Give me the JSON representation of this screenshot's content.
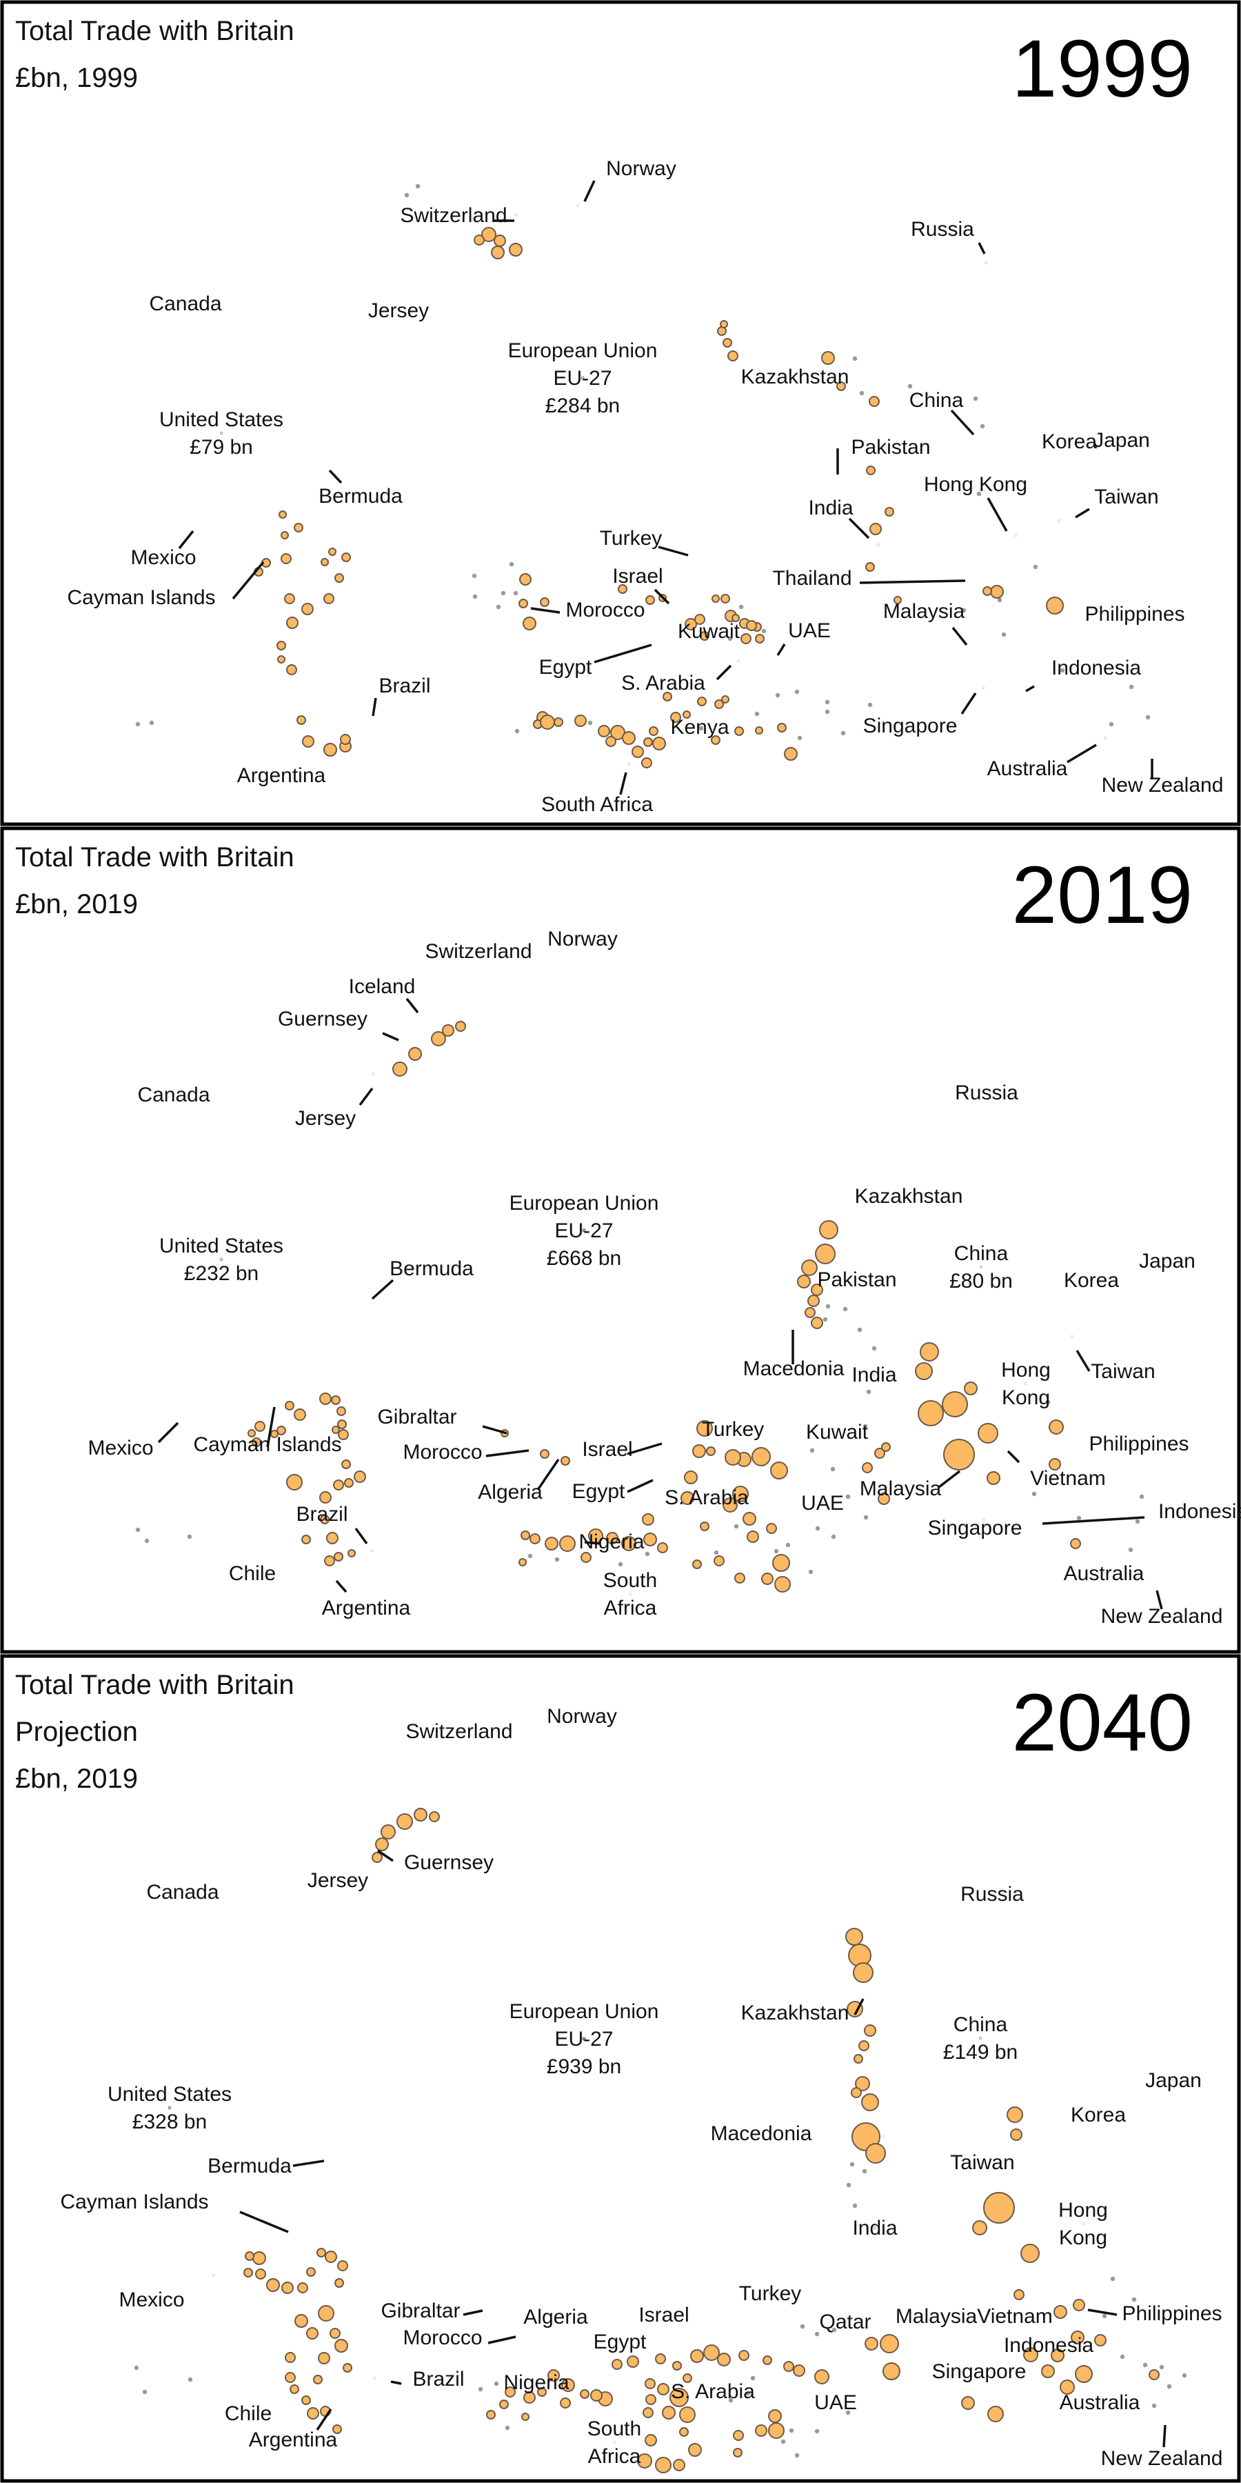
{
  "chart_data": [
    {
      "type": "bubble",
      "title": "Total Trade with Britain",
      "subtitle": [
        "£bn, 1999"
      ],
      "year_label": "1999",
      "bubbles": [
        {
          "name": "European Union",
          "text": [
            "European Union",
            "EU-27",
            "£284 bn"
          ],
          "value": 284
        },
        {
          "name": "United States",
          "text": [
            "United States",
            "£79 bn"
          ],
          "value": 79
        },
        {
          "name": "Japan",
          "text": [
            "Japan"
          ],
          "value": 10.5
        },
        {
          "name": "Switzerland",
          "label": "Switzerland",
          "value": 7
        },
        {
          "name": "Norway",
          "label": "Norway",
          "value": 5
        },
        {
          "name": "Canada",
          "text": [
            "Canada"
          ],
          "value": 4.5
        },
        {
          "name": "China",
          "label": "China",
          "value": 3.2
        },
        {
          "name": "Korea",
          "text": [
            "Korea"
          ],
          "value": 3
        },
        {
          "name": "Hong Kong",
          "label": "Hong Kong",
          "value": 5.6
        },
        {
          "name": "Taiwan",
          "label": "Taiwan",
          "value": 3
        },
        {
          "name": "Singapore",
          "label": "Singapore",
          "value": 4
        },
        {
          "name": "India",
          "label": "India",
          "value": 3
        },
        {
          "name": "Australia",
          "label": "Australia",
          "value": 4.2
        },
        {
          "name": "Saudi Arabia",
          "label": "S. Arabia",
          "value": 2.8
        },
        {
          "name": "UAE",
          "label": "UAE",
          "value": 2.5
        },
        {
          "name": "South Africa",
          "label": "South Africa",
          "value": 3.2
        },
        {
          "name": "Turkey",
          "label": "Turkey",
          "value": 2
        },
        {
          "name": "Israel",
          "label": "Israel",
          "value": 2
        },
        {
          "name": "Malaysia",
          "label": "Malaysia",
          "value": 2
        },
        {
          "name": "Russia",
          "label": "Russia",
          "value": 1.4
        },
        {
          "name": "Thailand",
          "label": "Thailand",
          "value": 1.4
        },
        {
          "name": "Brazil",
          "label": "Brazil",
          "value": 1.4
        },
        {
          "name": "Mexico",
          "label": "Mexico",
          "value": 1
        },
        {
          "name": "Indonesia",
          "label": "Indonesia",
          "value": 1
        },
        {
          "name": "New Zealand",
          "label": "New Zealand",
          "value": 0.9
        },
        {
          "name": "Bermuda",
          "label": "Bermuda",
          "value": 0.7
        },
        {
          "name": "Jersey",
          "label": "Jersey",
          "value": 0.8
        },
        {
          "name": "Egypt",
          "label": "Egypt",
          "value": 0.7
        },
        {
          "name": "Morocco",
          "label": "Morocco",
          "value": 0.6
        },
        {
          "name": "Pakistan",
          "label": "Pakistan",
          "value": 0.5
        },
        {
          "name": "Philippines",
          "label": "Philippines",
          "value": 0.6
        },
        {
          "name": "Kuwait",
          "label": "Kuwait",
          "value": 0.3
        },
        {
          "name": "Kenya",
          "label": "Kenya",
          "value": 0.4
        },
        {
          "name": "Kazakhstan",
          "label": "Kazakhstan",
          "value": 0.1
        },
        {
          "name": "Cayman Islands",
          "label": "Cayman Islands",
          "value": 0.1
        },
        {
          "name": "Argentina",
          "label": "Argentina",
          "value": 0.3
        }
      ]
    },
    {
      "type": "bubble",
      "title": "Total Trade with Britain",
      "subtitle": [
        "£bn, 2019"
      ],
      "year_label": "2019",
      "bubbles": [
        {
          "name": "European Union",
          "text": [
            "European Union",
            "EU-27",
            "£668 bn"
          ],
          "value": 668
        },
        {
          "name": "United States",
          "text": [
            "United States",
            "£232 bn"
          ],
          "value": 232
        },
        {
          "name": "China",
          "text": [
            "China",
            "£80 bn"
          ],
          "value": 80
        },
        {
          "name": "Switzerland",
          "text": [
            "Switzerland"
          ],
          "value": 24
        },
        {
          "name": "Norway",
          "text": [
            "Norway"
          ],
          "value": 16
        },
        {
          "name": "Japan",
          "text": [
            "Japan"
          ],
          "value": 19
        },
        {
          "name": "Hong Kong",
          "text": [
            "Hong",
            "Kong"
          ],
          "value": 14.5
        },
        {
          "name": "India",
          "text": [
            "India"
          ],
          "value": 13
        },
        {
          "name": "Canada",
          "text": [
            "Canada"
          ],
          "value": 13
        },
        {
          "name": "Australia",
          "text": [
            "Australia"
          ],
          "value": 15
        },
        {
          "name": "Singapore",
          "label": "Singapore",
          "value": 9.5
        },
        {
          "name": "Turkey",
          "text": [
            "Turkey"
          ],
          "value": 11
        },
        {
          "name": "UAE",
          "text": [
            "UAE"
          ],
          "value": 11
        },
        {
          "name": "Russia",
          "text": [
            "Russia"
          ],
          "value": 9
        },
        {
          "name": "Saudi Arabia",
          "text": [
            "S. Arabia"
          ],
          "value": 9.5
        },
        {
          "name": "South Africa",
          "text": [
            "South",
            "Africa"
          ],
          "value": 7
        },
        {
          "name": "Korea",
          "text": [
            "Korea"
          ],
          "value": 7
        },
        {
          "name": "Brazil",
          "label": "Brazil",
          "value": 4
        },
        {
          "name": "Taiwan",
          "label": "Taiwan",
          "value": 4
        },
        {
          "name": "Jersey",
          "label": "Jersey",
          "value": 4
        },
        {
          "name": "Mexico",
          "label": "Mexico",
          "value": 3
        },
        {
          "name": "Vietnam",
          "label": "Vietnam",
          "value": 3
        },
        {
          "name": "Israel",
          "label": "Israel",
          "value": 3.5
        },
        {
          "name": "Malaysia",
          "label": "Malaysia",
          "value": 3
        },
        {
          "name": "Guernsey",
          "label": "Guernsey",
          "value": 2
        },
        {
          "name": "Bermuda",
          "label": "Bermuda",
          "value": 2
        },
        {
          "name": "Nigeria",
          "label": "Nigeria",
          "value": 2.5
        },
        {
          "name": "Cayman Islands",
          "label": "Cayman Islands",
          "value": 1.8
        },
        {
          "name": "Egypt",
          "label": "Egypt",
          "value": 2
        },
        {
          "name": "Kuwait",
          "label": "Kuwait",
          "value": 1.5
        },
        {
          "name": "Pakistan",
          "label": "Pakistan",
          "value": 1.6
        },
        {
          "name": "Philippines",
          "label": "Philippines",
          "value": 1.3
        },
        {
          "name": "Indonesia",
          "label": "Indonesia",
          "value": 1.6
        },
        {
          "name": "Chile",
          "label": "Chile",
          "value": 1.3
        },
        {
          "name": "Argentina",
          "label": "Argentina",
          "value": 1.2
        },
        {
          "name": "Gibraltar",
          "label": "Gibraltar",
          "value": 1.3
        },
        {
          "name": "Morocco",
          "label": "Morocco",
          "value": 1.1
        },
        {
          "name": "Algeria",
          "label": "Algeria",
          "value": 1.2
        },
        {
          "name": "Iceland",
          "label": "Iceland",
          "value": 1.1
        },
        {
          "name": "Kazakhstan",
          "label": "Kazakhstan",
          "value": 1.1
        },
        {
          "name": "Macedonia",
          "label": "Macedonia",
          "value": 1
        },
        {
          "name": "New Zealand",
          "label": "New Zealand",
          "value": 1.8
        }
      ]
    },
    {
      "type": "bubble",
      "title": "Total Trade with Britain",
      "subtitle": [
        "Projection",
        "£bn, 2019"
      ],
      "year_label": "2040",
      "bubbles": [
        {
          "name": "European Union",
          "text": [
            "European Union",
            "EU-27",
            "£939 bn"
          ],
          "value": 939
        },
        {
          "name": "United States",
          "text": [
            "United States",
            "£328 bn"
          ],
          "value": 328
        },
        {
          "name": "China",
          "text": [
            "China",
            "£149 bn"
          ],
          "value": 149
        },
        {
          "name": "India",
          "text": [
            "India"
          ],
          "value": 70
        },
        {
          "name": "Turkey",
          "text": [
            "Turkey"
          ],
          "value": 37
        },
        {
          "name": "Switzerland",
          "text": [
            "Switzerland"
          ],
          "value": 34
        },
        {
          "name": "Norway",
          "text": [
            "Norway"
          ],
          "value": 25
        },
        {
          "name": "Japan",
          "text": [
            "Japan"
          ],
          "value": 26
        },
        {
          "name": "Hong Kong",
          "text": [
            "Hong",
            "Kong"
          ],
          "value": 26
        },
        {
          "name": "UAE",
          "text": [
            "UAE"
          ],
          "value": 25
        },
        {
          "name": "Australia",
          "text": [
            "Australia"
          ],
          "value": 21
        },
        {
          "name": "Saudi Arabia",
          "text": [
            "S. Arabia"
          ],
          "value": 12
        },
        {
          "name": "South Africa",
          "text": [
            "South",
            "Africa"
          ],
          "value": 13
        },
        {
          "name": "Canada",
          "text": [
            "Canada"
          ],
          "value": 12.5
        },
        {
          "name": "Singapore",
          "text": [
            "Singapore"
          ],
          "value": 14
        },
        {
          "name": "Vietnam",
          "text": [
            "Vietnam"
          ],
          "value": 10
        },
        {
          "name": "Malaysia",
          "text": [
            "Malaysia"
          ],
          "value": 8
        },
        {
          "name": "Taiwan",
          "text": [
            "Taiwan"
          ],
          "value": 9
        },
        {
          "name": "Russia",
          "text": [
            "Russia"
          ],
          "value": 9
        },
        {
          "name": "Korea",
          "text": [
            "Korea"
          ],
          "value": 8
        },
        {
          "name": "Brazil",
          "label": "Brazil",
          "value": 6
        },
        {
          "name": "Israel",
          "text": [
            "Israel"
          ],
          "value": 7
        },
        {
          "name": "Mexico",
          "label": "Mexico",
          "value": 5
        },
        {
          "name": "Qatar",
          "text": [
            "Qatar"
          ],
          "value": 5
        },
        {
          "name": "Egypt",
          "text": [
            "Egypt"
          ],
          "value": 5
        },
        {
          "name": "Algeria",
          "text": [
            "Algeria"
          ],
          "value": 3.5
        },
        {
          "name": "Cayman Islands",
          "label": "Cayman Islands",
          "value": 2.8
        },
        {
          "name": "Jersey",
          "text": [
            "Jersey"
          ],
          "value": 5
        },
        {
          "name": "Guernsey",
          "label": "Guernsey",
          "value": 2.3
        },
        {
          "name": "Nigeria",
          "text": [
            "Nigeria"
          ],
          "value": 3
        },
        {
          "name": "Indonesia",
          "text": [
            "Indonesia"
          ],
          "value": 3.5
        },
        {
          "name": "Philippines",
          "label": "Philippines",
          "value": 3
        },
        {
          "name": "New Zealand",
          "label": "New Zealand",
          "value": 2.8
        },
        {
          "name": "Argentina",
          "label": "Argentina",
          "value": 2.5
        },
        {
          "name": "Chile",
          "label": "Chile",
          "value": 2
        },
        {
          "name": "Morocco",
          "label": "Morocco",
          "value": 2
        },
        {
          "name": "Gibraltar",
          "label": "Gibraltar",
          "value": 2
        },
        {
          "name": "Bermuda",
          "label": "Bermuda",
          "value": 2.5
        },
        {
          "name": "Kazakhstan",
          "label": "Kazakhstan",
          "value": 2
        },
        {
          "name": "Macedonia",
          "label": "Macedonia",
          "value": 7
        }
      ]
    }
  ],
  "colors": {
    "bubble_fill": "#fbb963",
    "bubble_stroke": "#6b5a4a",
    "frame": "#000000",
    "dot": "#999999"
  }
}
